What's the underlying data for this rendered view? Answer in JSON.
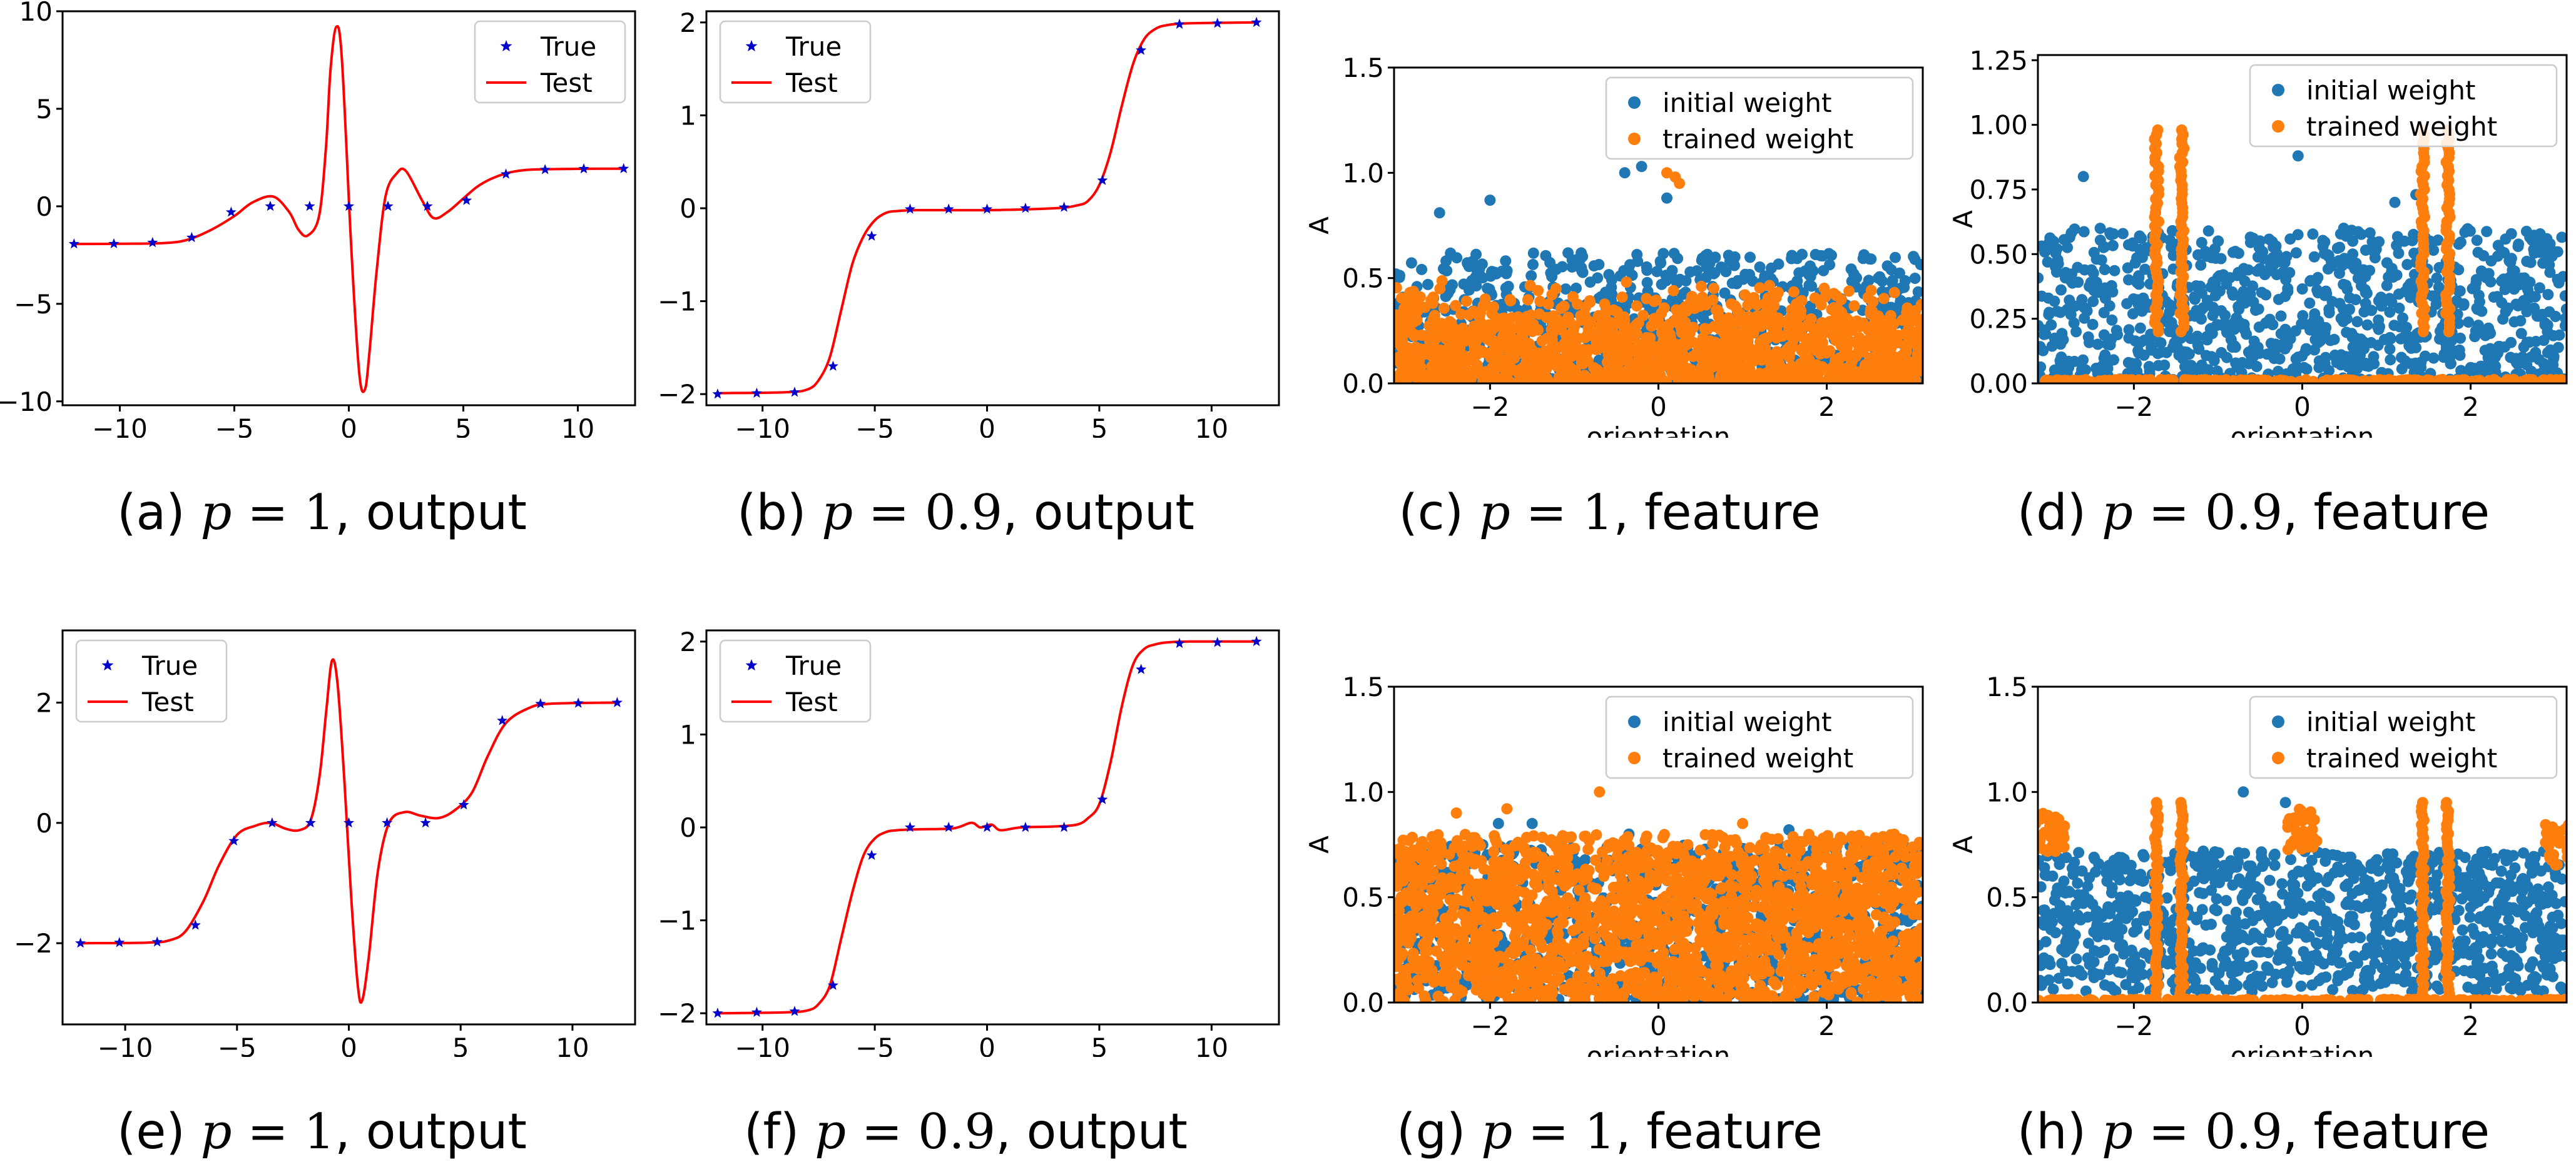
{
  "colors": {
    "true": "#0000cc",
    "test": "#ff0000",
    "initial": "#1f77b4",
    "trained": "#ff7f0e"
  },
  "captions": [
    {
      "prefix": "(a) ",
      "p": "1",
      "suffix": ", output"
    },
    {
      "prefix": "(b) ",
      "p": "0.9",
      "suffix": ", output"
    },
    {
      "prefix": "(c) ",
      "p": "1",
      "suffix": ", feature"
    },
    {
      "prefix": "(d) ",
      "p": "0.9",
      "suffix": ", feature"
    },
    {
      "prefix": "(e) ",
      "p": "1",
      "suffix": ", output"
    },
    {
      "prefix": "(f) ",
      "p": "0.9",
      "suffix": ", output"
    },
    {
      "prefix": "(g) ",
      "p": "1",
      "suffix": ", feature"
    },
    {
      "prefix": "(h) ",
      "p": "0.9",
      "suffix": ", feature"
    }
  ],
  "chart_data": [
    {
      "id": "a",
      "type": "line",
      "xlim": [
        -12.5,
        12.5
      ],
      "ylim": [
        -10.2,
        10
      ],
      "xticks": [
        -10,
        -5,
        0,
        5,
        10
      ],
      "yticks": [
        -10,
        -5,
        0,
        5,
        10
      ],
      "legend": [
        "True",
        "Test"
      ],
      "legend_position": "top-right",
      "series": [
        {
          "name": "True",
          "kind": "scatter",
          "marker": "star",
          "x": [
            -12,
            -10.26,
            -8.57,
            -6.86,
            -5.14,
            -3.43,
            -1.71,
            0,
            1.71,
            3.43,
            5.14,
            6.86,
            8.57,
            10.26,
            12
          ],
          "y": [
            -1.93,
            -1.92,
            -1.86,
            -1.6,
            -0.3,
            0.0,
            0.0,
            0.0,
            0.0,
            0.0,
            0.3,
            1.65,
            1.88,
            1.92,
            1.93
          ]
        },
        {
          "name": "Test",
          "kind": "line",
          "x": [
            -12,
            -10,
            -8,
            -7,
            -6,
            -5,
            -4.2,
            -3.3,
            -2.6,
            -2.2,
            -1.8,
            -1.3,
            -1.0,
            -0.8,
            -0.55,
            -0.3,
            0.1,
            0.45,
            0.7,
            0.9,
            1.2,
            1.6,
            2.1,
            2.5,
            3.2,
            3.7,
            4.3,
            5,
            5.6,
            6.2,
            6.9,
            7.6,
            8.5,
            10,
            12
          ],
          "y": [
            -1.93,
            -1.92,
            -1.88,
            -1.7,
            -1.2,
            -0.5,
            0.2,
            0.5,
            -0.3,
            -1.2,
            -1.5,
            -0.5,
            3.0,
            7.0,
            9.2,
            7.5,
            -2.0,
            -8.5,
            -9.4,
            -7.5,
            -3.5,
            0.5,
            1.7,
            1.8,
            0.3,
            -0.6,
            -0.3,
            0.4,
            1.0,
            1.4,
            1.7,
            1.85,
            1.9,
            1.92,
            1.93
          ]
        }
      ]
    },
    {
      "id": "b",
      "type": "line",
      "xlim": [
        -12.5,
        13
      ],
      "ylim": [
        -2.12,
        2.12
      ],
      "xticks": [
        -10,
        -5,
        0,
        5,
        10
      ],
      "yticks": [
        -2,
        -1,
        0,
        1,
        2
      ],
      "legend": [
        "True",
        "Test"
      ],
      "legend_position": "top-left",
      "series": [
        {
          "name": "True",
          "kind": "scatter",
          "marker": "star",
          "x": [
            -12,
            -10.26,
            -8.57,
            -6.86,
            -5.14,
            -3.43,
            -1.71,
            0,
            1.71,
            3.43,
            5.14,
            6.86,
            8.57,
            10.26,
            12
          ],
          "y": [
            -2,
            -1.99,
            -1.98,
            -1.7,
            -0.3,
            -0.01,
            -0.01,
            -0.01,
            0,
            0.01,
            0.3,
            1.7,
            1.98,
            1.99,
            2
          ]
        },
        {
          "name": "Test",
          "kind": "line",
          "x": [
            -12,
            -9,
            -8,
            -7.5,
            -7,
            -6.5,
            -6,
            -5.5,
            -5,
            -4.5,
            -4,
            -3,
            0,
            3,
            4,
            4.5,
            5,
            5.5,
            6,
            6.5,
            7,
            7.5,
            8,
            9,
            12
          ],
          "y": [
            -1.99,
            -1.98,
            -1.95,
            -1.85,
            -1.6,
            -1.1,
            -0.6,
            -0.3,
            -0.13,
            -0.05,
            -0.03,
            -0.02,
            -0.02,
            0.0,
            0.03,
            0.08,
            0.25,
            0.6,
            1.1,
            1.55,
            1.82,
            1.93,
            1.97,
            1.99,
            2.0
          ]
        }
      ]
    },
    {
      "id": "c",
      "type": "scatter",
      "xlim": [
        -3.14,
        3.14
      ],
      "ylim": [
        0,
        1.5
      ],
      "xticks": [
        -2,
        0,
        2
      ],
      "yticks": [
        0.0,
        0.5,
        1.0,
        1.5
      ],
      "xlabel": "orientation",
      "ylabel": "A",
      "legend": [
        "initial weight",
        "trained weight"
      ],
      "legend_position": "top-right",
      "series": [
        {
          "name": "initial weight",
          "n": 900,
          "range": [
            0,
            0.62
          ],
          "outliers": {
            "x": [
              -2.6,
              -2.0,
              -0.4,
              -0.2,
              0.1,
              0.85
            ],
            "y": [
              0.81,
              0.87,
              1.0,
              1.03,
              0.88,
              0.58
            ]
          }
        },
        {
          "name": "trained weight",
          "n": 1400,
          "range": [
            0,
            0.5
          ],
          "outliers": {
            "x": [
              0.1,
              0.2,
              0.25
            ],
            "y": [
              1.0,
              0.98,
              0.95
            ]
          }
        }
      ]
    },
    {
      "id": "d",
      "type": "scatter",
      "xlim": [
        -3.14,
        3.14
      ],
      "ylim": [
        0,
        1.27
      ],
      "xticks": [
        -2,
        0,
        2
      ],
      "yticks": [
        0.0,
        0.25,
        0.5,
        0.75,
        1.0,
        1.25
      ],
      "xlabel": "orientation",
      "ylabel": "A",
      "legend": [
        "initial weight",
        "trained weight"
      ],
      "legend_position": "top-right",
      "series": [
        {
          "name": "initial weight",
          "n": 1000,
          "range": [
            0,
            0.6
          ],
          "outliers": {
            "x": [
              -2.6,
              -0.05,
              1.1,
              1.35
            ],
            "y": [
              0.8,
              0.88,
              0.7,
              0.73
            ]
          }
        },
        {
          "name": "trained weight",
          "vertical_bands": [
            -1.73,
            -1.43,
            1.43,
            1.73
          ],
          "band_top": 0.98,
          "band_bottom": 0.2
        }
      ]
    },
    {
      "id": "e",
      "type": "line",
      "xlim": [
        -12.8,
        12.8
      ],
      "ylim": [
        -3.35,
        3.2
      ],
      "xticks": [
        -10,
        -5,
        0,
        5,
        10
      ],
      "yticks": [
        -2,
        0,
        2
      ],
      "legend": [
        "True",
        "Test"
      ],
      "legend_position": "top-left",
      "series": [
        {
          "name": "True",
          "kind": "scatter",
          "marker": "star",
          "x": [
            -12,
            -10.26,
            -8.57,
            -6.86,
            -5.14,
            -3.43,
            -1.71,
            0,
            1.71,
            3.43,
            5.14,
            6.86,
            8.57,
            10.26,
            12
          ],
          "y": [
            -2,
            -1.99,
            -1.98,
            -1.7,
            -0.3,
            0.0,
            0.0,
            0.0,
            0.0,
            0.0,
            0.3,
            1.7,
            1.98,
            1.99,
            2
          ]
        },
        {
          "name": "Test",
          "kind": "line",
          "x": [
            -12,
            -9,
            -8,
            -7.3,
            -6.5,
            -5.8,
            -5,
            -4.2,
            -3.5,
            -2.8,
            -2.2,
            -1.7,
            -1.3,
            -1.0,
            -0.75,
            -0.5,
            -0.2,
            0.1,
            0.4,
            0.6,
            0.9,
            1.3,
            1.8,
            2.5,
            3.2,
            4,
            4.7,
            5.5,
            6.2,
            7,
            8,
            9,
            12
          ],
          "y": [
            -2,
            -1.99,
            -1.95,
            -1.8,
            -1.3,
            -0.7,
            -0.2,
            -0.05,
            0.0,
            -0.1,
            -0.12,
            0.05,
            0.8,
            1.9,
            2.7,
            2.3,
            0.7,
            -1.2,
            -2.7,
            -2.95,
            -2.2,
            -0.8,
            0.0,
            0.18,
            0.12,
            0.08,
            0.2,
            0.5,
            1.1,
            1.65,
            1.9,
            1.98,
            2
          ]
        }
      ]
    },
    {
      "id": "f",
      "type": "line",
      "xlim": [
        -12.5,
        13
      ],
      "ylim": [
        -2.12,
        2.12
      ],
      "xticks": [
        -10,
        -5,
        0,
        5,
        10
      ],
      "yticks": [
        -2,
        -1,
        0,
        1,
        2
      ],
      "legend": [
        "True",
        "Test"
      ],
      "legend_position": "top-left",
      "series": [
        {
          "name": "True",
          "kind": "scatter",
          "marker": "star",
          "x": [
            -12,
            -10.26,
            -8.57,
            -6.86,
            -5.14,
            -3.43,
            -1.71,
            0,
            1.71,
            3.43,
            5.14,
            6.86,
            8.57,
            10.26,
            12
          ],
          "y": [
            -2,
            -1.99,
            -1.98,
            -1.7,
            -0.3,
            0.0,
            0.0,
            0.0,
            0.0,
            0.0,
            0.3,
            1.7,
            1.98,
            1.99,
            2
          ]
        },
        {
          "name": "Test",
          "kind": "line",
          "x": [
            -12,
            -9,
            -8,
            -7.5,
            -7,
            -6.5,
            -6,
            -5.5,
            -5,
            -4.5,
            -4,
            -3,
            -1.5,
            -0.7,
            -0.3,
            0.2,
            0.6,
            1.5,
            3,
            4,
            4.5,
            5,
            5.5,
            6,
            6.5,
            7,
            7.5,
            8,
            9,
            12
          ],
          "y": [
            -2,
            -1.99,
            -1.97,
            -1.9,
            -1.7,
            -1.2,
            -0.7,
            -0.3,
            -0.12,
            -0.05,
            -0.03,
            -0.02,
            -0.01,
            0.05,
            0.0,
            0.03,
            -0.03,
            0.0,
            0.01,
            0.03,
            0.1,
            0.25,
            0.7,
            1.3,
            1.75,
            1.92,
            1.97,
            1.99,
            2.0,
            2.0
          ]
        }
      ]
    },
    {
      "id": "g",
      "type": "scatter",
      "xlim": [
        -3.14,
        3.14
      ],
      "ylim": [
        0,
        1.5
      ],
      "xticks": [
        -2,
        0,
        2
      ],
      "yticks": [
        0.0,
        0.5,
        1.0,
        1.5
      ],
      "xlabel": "orientation",
      "ylabel": "A",
      "legend": [
        "initial weight",
        "trained weight"
      ],
      "legend_position": "top-right",
      "series": [
        {
          "name": "initial weight",
          "n": 1000,
          "range": [
            0,
            0.75
          ],
          "outliers": {
            "x": [
              -1.9,
              -1.5,
              -0.35,
              1.55
            ],
            "y": [
              0.85,
              0.85,
              0.8,
              0.82
            ]
          }
        },
        {
          "name": "trained weight",
          "n": 1500,
          "range": [
            0,
            0.8
          ],
          "outliers": {
            "x": [
              -2.4,
              -1.8,
              -0.7,
              1.0
            ],
            "y": [
              0.9,
              0.92,
              1.0,
              0.85
            ]
          }
        }
      ]
    },
    {
      "id": "h",
      "type": "scatter",
      "xlim": [
        -3.14,
        3.14
      ],
      "ylim": [
        0,
        1.5
      ],
      "xticks": [
        -2,
        0,
        2
      ],
      "yticks": [
        0.0,
        0.5,
        1.0,
        1.5
      ],
      "xlabel": "orientation",
      "ylabel": "A",
      "legend": [
        "initial weight",
        "trained weight"
      ],
      "legend_position": "top-right",
      "series": [
        {
          "name": "initial weight",
          "n": 1100,
          "range": [
            0,
            0.72
          ],
          "outliers": {
            "x": [
              -0.7,
              -0.2
            ],
            "y": [
              1.0,
              0.95
            ]
          }
        },
        {
          "name": "trained weight",
          "vertical_bands": [
            -1.73,
            -1.43,
            1.43,
            1.73
          ],
          "band_top": 0.95,
          "band_bottom": 0.02,
          "clusters": [
            {
              "x": -3.0,
              "y": 0.8
            },
            {
              "x": 0.0,
              "y": 0.82
            },
            {
              "x": 3.05,
              "y": 0.75
            }
          ]
        }
      ]
    }
  ]
}
